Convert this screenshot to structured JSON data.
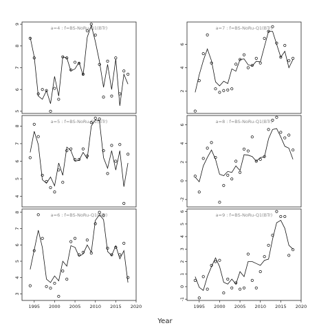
{
  "chart_data": {
    "type": "scatter",
    "layout": "3x2 grid of small multiples",
    "xlabel": "Year",
    "x_ticks": [
      1995,
      2000,
      2005,
      2010,
      2015,
      2020
    ],
    "panels": [
      {
        "title": "a=4 : f=BS-NoRu-Q1(BTr)",
        "ylim": [
          4.9,
          9.1
        ],
        "y_ticks": [
          5,
          6,
          7,
          8,
          9
        ],
        "x_ticks_visible": false,
        "observed": [
          [
            1994,
            8.35
          ],
          [
            1995,
            7.45
          ],
          [
            1996,
            5.8
          ],
          [
            1997,
            6.0
          ],
          [
            1998,
            5.95
          ],
          [
            1999,
            5.0
          ],
          [
            2000,
            6.05
          ],
          [
            2001,
            5.55
          ],
          [
            2002,
            7.5
          ],
          [
            2003,
            7.45
          ],
          [
            2004,
            6.9
          ],
          [
            2005,
            7.25
          ],
          [
            2006,
            7.2
          ],
          [
            2007,
            6.7
          ],
          [
            2008,
            8.7
          ],
          [
            2009,
            9.0
          ],
          [
            2010,
            8.5
          ],
          [
            2011,
            7.15
          ],
          [
            2012,
            5.65
          ],
          [
            2013,
            7.3
          ],
          [
            2014,
            5.7
          ],
          [
            2015,
            7.45
          ],
          [
            2016,
            5.8
          ],
          [
            2017,
            6.85
          ],
          [
            2018,
            6.7
          ]
        ],
        "fitted": [
          [
            1994,
            8.4
          ],
          [
            1995,
            7.5
          ],
          [
            1996,
            5.7
          ],
          [
            1997,
            5.55
          ],
          [
            1998,
            5.95
          ],
          [
            1999,
            5.35
          ],
          [
            2000,
            6.6
          ],
          [
            2001,
            5.7
          ],
          [
            2002,
            7.5
          ],
          [
            2003,
            7.45
          ],
          [
            2004,
            6.85
          ],
          [
            2005,
            6.95
          ],
          [
            2006,
            7.25
          ],
          [
            2007,
            6.65
          ],
          [
            2008,
            8.4
          ],
          [
            2009,
            8.95
          ],
          [
            2010,
            8.2
          ],
          [
            2011,
            7.3
          ],
          [
            2012,
            6.1
          ],
          [
            2013,
            7.15
          ],
          [
            2014,
            6.0
          ],
          [
            2015,
            7.4
          ],
          [
            2016,
            5.25
          ],
          [
            2017,
            6.7
          ],
          [
            2018,
            6.25
          ]
        ]
      },
      {
        "title": "a=7 : f=BS-NoRu-Q1(BTr)",
        "ylim": [
          0.1,
          7.9
        ],
        "y_ticks": [
          2,
          4,
          6
        ],
        "x_ticks_visible": false,
        "observed": [
          [
            1994,
            0.3
          ],
          [
            1995,
            2.9
          ],
          [
            1996,
            5.2
          ],
          [
            1997,
            6.8
          ],
          [
            1998,
            4.4
          ],
          [
            1999,
            2.2
          ],
          [
            2000,
            1.9
          ],
          [
            2001,
            2.05
          ],
          [
            2002,
            2.1
          ],
          [
            2003,
            2.2
          ],
          [
            2004,
            4.3
          ],
          [
            2005,
            4.7
          ],
          [
            2006,
            5.1
          ],
          [
            2007,
            4.0
          ],
          [
            2008,
            4.2
          ],
          [
            2009,
            4.8
          ],
          [
            2010,
            4.4
          ],
          [
            2011,
            6.5
          ],
          [
            2012,
            7.1
          ],
          [
            2013,
            7.5
          ],
          [
            2014,
            6.1
          ],
          [
            2015,
            4.9
          ],
          [
            2016,
            5.9
          ],
          [
            2017,
            4.6
          ],
          [
            2018,
            4.8
          ]
        ],
        "fitted": [
          [
            1994,
            1.9
          ],
          [
            1995,
            3.4
          ],
          [
            1996,
            4.6
          ],
          [
            1997,
            5.6
          ],
          [
            1998,
            4.6
          ],
          [
            1999,
            2.8
          ],
          [
            2000,
            2.45
          ],
          [
            2001,
            2.85
          ],
          [
            2002,
            2.65
          ],
          [
            2003,
            3.9
          ],
          [
            2004,
            3.7
          ],
          [
            2005,
            4.7
          ],
          [
            2006,
            4.75
          ],
          [
            2007,
            4.25
          ],
          [
            2008,
            4.15
          ],
          [
            2009,
            4.55
          ],
          [
            2010,
            4.5
          ],
          [
            2011,
            5.8
          ],
          [
            2012,
            7.1
          ],
          [
            2013,
            7.1
          ],
          [
            2014,
            6.0
          ],
          [
            2015,
            4.9
          ],
          [
            2016,
            5.4
          ],
          [
            2017,
            4.0
          ],
          [
            2018,
            4.7
          ]
        ]
      },
      {
        "title": "a=5 : f=BS-NoRu-Q1(BTr)",
        "ylim": [
          3.4,
          8.6
        ],
        "y_ticks": [
          4,
          5,
          6,
          7,
          8
        ],
        "x_ticks_visible": false,
        "observed": [
          [
            1994,
            6.2
          ],
          [
            1995,
            8.1
          ],
          [
            1996,
            7.4
          ],
          [
            1997,
            5.2
          ],
          [
            1998,
            4.85
          ],
          [
            1999,
            4.5
          ],
          [
            2000,
            4.25
          ],
          [
            2001,
            5.5
          ],
          [
            2002,
            4.8
          ],
          [
            2003,
            6.6
          ],
          [
            2004,
            6.7
          ],
          [
            2005,
            6.1
          ],
          [
            2006,
            6.1
          ],
          [
            2007,
            6.7
          ],
          [
            2008,
            6.3
          ],
          [
            2009,
            8.2
          ],
          [
            2010,
            8.45
          ],
          [
            2011,
            8.4
          ],
          [
            2012,
            6.6
          ],
          [
            2013,
            5.3
          ],
          [
            2014,
            6.9
          ],
          [
            2015,
            6.0
          ],
          [
            2016,
            6.95
          ],
          [
            2017,
            3.6
          ],
          [
            2018,
            6.4
          ]
        ],
        "fitted": [
          [
            1994,
            6.5
          ],
          [
            1995,
            7.7
          ],
          [
            1996,
            6.95
          ],
          [
            1997,
            4.95
          ],
          [
            1998,
            4.75
          ],
          [
            1999,
            5.1
          ],
          [
            2000,
            4.6
          ],
          [
            2001,
            5.9
          ],
          [
            2002,
            5.2
          ],
          [
            2003,
            6.8
          ],
          [
            2004,
            6.6
          ],
          [
            2005,
            6.0
          ],
          [
            2006,
            6.05
          ],
          [
            2007,
            6.5
          ],
          [
            2008,
            6.15
          ],
          [
            2009,
            8.0
          ],
          [
            2010,
            8.35
          ],
          [
            2011,
            8.3
          ],
          [
            2012,
            6.2
          ],
          [
            2013,
            5.6
          ],
          [
            2014,
            6.6
          ],
          [
            2015,
            5.5
          ],
          [
            2016,
            6.6
          ],
          [
            2017,
            4.55
          ],
          [
            2018,
            5.9
          ]
        ]
      },
      {
        "title": "a=8 : f=BS-NoRu-Q1(BTr)",
        "ylim": [
          -2.8,
          7.0
        ],
        "y_ticks": [
          -2,
          0,
          2,
          4,
          6
        ],
        "x_ticks_visible": false,
        "observed": [
          [
            1994,
            0.5
          ],
          [
            1995,
            -1.2
          ],
          [
            1996,
            2.4
          ],
          [
            1997,
            3.5
          ],
          [
            1998,
            4.1
          ],
          [
            1999,
            2.5
          ],
          [
            2000,
            -2.3
          ],
          [
            2001,
            -0.5
          ],
          [
            2002,
            0.6
          ],
          [
            2003,
            0.2
          ],
          [
            2004,
            2.1
          ],
          [
            2005,
            0.9
          ],
          [
            2006,
            3.4
          ],
          [
            2007,
            3.2
          ],
          [
            2008,
            4.7
          ],
          [
            2009,
            2.1
          ],
          [
            2010,
            2.3
          ],
          [
            2011,
            2.6
          ],
          [
            2012,
            5.5
          ],
          [
            2013,
            6.5
          ],
          [
            2014,
            6.8
          ],
          [
            2015,
            5.2
          ],
          [
            2016,
            4.6
          ],
          [
            2017,
            4.9
          ],
          [
            2018,
            3.3
          ]
        ],
        "fitted": [
          [
            1994,
            0.4
          ],
          [
            1995,
            -0.1
          ],
          [
            1996,
            1.6
          ],
          [
            1997,
            2.5
          ],
          [
            1998,
            3.3
          ],
          [
            1999,
            2.3
          ],
          [
            2000,
            0.7
          ],
          [
            2001,
            0.55
          ],
          [
            2002,
            1.0
          ],
          [
            2003,
            0.9
          ],
          [
            2004,
            1.6
          ],
          [
            2005,
            1.1
          ],
          [
            2006,
            2.8
          ],
          [
            2007,
            2.75
          ],
          [
            2008,
            2.6
          ],
          [
            2009,
            2.1
          ],
          [
            2010,
            2.5
          ],
          [
            2011,
            2.55
          ],
          [
            2012,
            4.5
          ],
          [
            2013,
            5.5
          ],
          [
            2014,
            5.6
          ],
          [
            2015,
            4.7
          ],
          [
            2016,
            3.7
          ],
          [
            2017,
            3.5
          ],
          [
            2018,
            2.3
          ]
        ]
      },
      {
        "title": "a=6 : f=BS-NoRu-Q1(BTr)",
        "ylim": [
          2.6,
          8.2
        ],
        "y_ticks": [
          3,
          4,
          5,
          6,
          7,
          8
        ],
        "x_ticks_visible": true,
        "observed": [
          [
            1994,
            3.5
          ],
          [
            1995,
            5.65
          ],
          [
            1996,
            7.85
          ],
          [
            1997,
            6.4
          ],
          [
            1998,
            3.45
          ],
          [
            1999,
            3.35
          ],
          [
            2000,
            3.65
          ],
          [
            2001,
            2.85
          ],
          [
            2002,
            4.4
          ],
          [
            2003,
            3.9
          ],
          [
            2004,
            6.2
          ],
          [
            2005,
            6.4
          ],
          [
            2006,
            5.4
          ],
          [
            2007,
            5.55
          ],
          [
            2008,
            6.3
          ],
          [
            2009,
            5.5
          ],
          [
            2010,
            7.3
          ],
          [
            2011,
            8.0
          ],
          [
            2012,
            7.8
          ],
          [
            2013,
            5.8
          ],
          [
            2014,
            5.4
          ],
          [
            2015,
            5.85
          ],
          [
            2016,
            5.4
          ],
          [
            2017,
            6.1
          ],
          [
            2018,
            4.0
          ]
        ],
        "fitted": [
          [
            1994,
            4.5
          ],
          [
            1995,
            5.7
          ],
          [
            1996,
            6.9
          ],
          [
            1997,
            5.85
          ],
          [
            1998,
            3.9
          ],
          [
            1999,
            3.7
          ],
          [
            2000,
            4.1
          ],
          [
            2001,
            3.8
          ],
          [
            2002,
            5.0
          ],
          [
            2003,
            4.7
          ],
          [
            2004,
            5.95
          ],
          [
            2005,
            5.85
          ],
          [
            2006,
            5.3
          ],
          [
            2007,
            5.45
          ],
          [
            2008,
            6.0
          ],
          [
            2009,
            5.55
          ],
          [
            2010,
            7.5
          ],
          [
            2011,
            7.85
          ],
          [
            2012,
            7.55
          ],
          [
            2013,
            5.6
          ],
          [
            2014,
            5.35
          ],
          [
            2015,
            5.95
          ],
          [
            2016,
            5.15
          ],
          [
            2017,
            5.65
          ],
          [
            2018,
            3.7
          ]
        ]
      },
      {
        "title": "a=9 : f=BS-NoRu-Q1(BTr)",
        "ylim": [
          -1.1,
          6.2
        ],
        "y_ticks": [
          -1,
          0,
          1,
          2,
          3,
          4,
          5,
          6
        ],
        "x_ticks_visible": true,
        "observed": [
          [
            1994,
            0.5
          ],
          [
            1995,
            -0.9
          ],
          [
            1996,
            0.8
          ],
          [
            1997,
            -0.2
          ],
          [
            1998,
            1.7
          ],
          [
            1999,
            2.0
          ],
          [
            2000,
            2.1
          ],
          [
            2001,
            -0.5
          ],
          [
            2002,
            0.6
          ],
          [
            2003,
            -0.1
          ],
          [
            2004,
            0.3
          ],
          [
            2005,
            -0.2
          ],
          [
            2006,
            -0.1
          ],
          [
            2007,
            2.6
          ],
          [
            2008,
            0.5
          ],
          [
            2009,
            -0.1
          ],
          [
            2010,
            1.2
          ],
          [
            2011,
            2.4
          ],
          [
            2012,
            3.3
          ],
          [
            2013,
            4.1
          ],
          [
            2014,
            6.0
          ],
          [
            2015,
            5.6
          ],
          [
            2016,
            5.6
          ],
          [
            2017,
            2.5
          ],
          [
            2018,
            2.95
          ]
        ],
        "fitted": [
          [
            1994,
            0.8
          ],
          [
            1995,
            -0.05
          ],
          [
            1996,
            -0.3
          ],
          [
            1997,
            0.8
          ],
          [
            1998,
            1.6
          ],
          [
            1999,
            2.3
          ],
          [
            2000,
            1.6
          ],
          [
            2001,
            0.35
          ],
          [
            2002,
            0.2
          ],
          [
            2003,
            0.6
          ],
          [
            2004,
            0.2
          ],
          [
            2005,
            1.2
          ],
          [
            2006,
            0.8
          ],
          [
            2007,
            2.0
          ],
          [
            2008,
            2.0
          ],
          [
            2009,
            1.85
          ],
          [
            2010,
            1.7
          ],
          [
            2011,
            2.1
          ],
          [
            2012,
            2.2
          ],
          [
            2013,
            3.8
          ],
          [
            2014,
            5.1
          ],
          [
            2015,
            5.3
          ],
          [
            2016,
            4.65
          ],
          [
            2017,
            3.3
          ],
          [
            2018,
            3.0
          ]
        ]
      }
    ]
  }
}
